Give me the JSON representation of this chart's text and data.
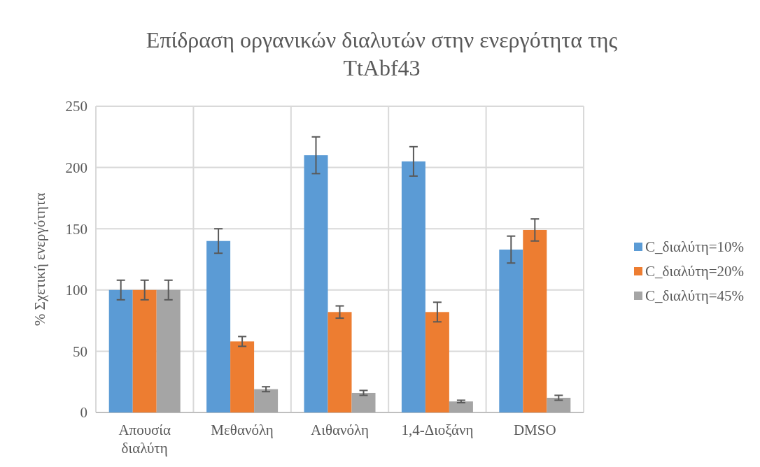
{
  "chart_data": {
    "type": "bar",
    "title": "Επίδραση οργανικών διαλυτών στην ενεργότητα της TtAbf43",
    "ylabel": "% Σχετική ενεργότητα",
    "categories": [
      "Απουσία διαλύτη",
      "Μεθανόλη",
      "Αιθανόλη",
      "1,4-Διοξάνη",
      "DMSO"
    ],
    "series": [
      {
        "name": "C_διαλύτη=10%",
        "color": "#5b9bd5",
        "values": [
          100,
          140,
          210,
          205,
          133
        ],
        "errors": [
          8,
          10,
          15,
          12,
          11
        ]
      },
      {
        "name": "C_διαλύτη=20%",
        "color": "#ed7d31",
        "values": [
          100,
          58,
          82,
          82,
          149
        ],
        "errors": [
          8,
          4,
          5,
          8,
          9
        ]
      },
      {
        "name": "C_διαλύτη=45%",
        "color": "#a5a5a5",
        "values": [
          100,
          19,
          16,
          9,
          12
        ],
        "errors": [
          8,
          2,
          2,
          1,
          2
        ]
      }
    ],
    "ylim": [
      0,
      250
    ],
    "yticks": [
      0,
      50,
      100,
      150,
      200,
      250
    ],
    "grid": true,
    "legend": "right"
  }
}
